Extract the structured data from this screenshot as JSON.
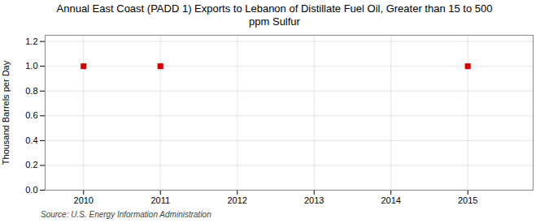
{
  "chart_data": {
    "type": "scatter",
    "title": "Annual East Coast (PADD 1) Exports to Lebanon of Distillate Fuel Oil, Greater than 15 to 500\nppm Sulfur",
    "ylabel": "Thousand Barrels per Day",
    "source": "Source: U.S. Energy Information Administration",
    "x": [
      2010,
      2011,
      2015
    ],
    "values": [
      1.0,
      1.0,
      1.0
    ],
    "color": "#cc0000",
    "marker": "square",
    "xlim": [
      2009.5,
      2015.85
    ],
    "ylim": [
      0.0,
      1.25
    ],
    "xticks": [
      2010,
      2011,
      2012,
      2013,
      2014,
      2015
    ],
    "yticks": [
      {
        "value": 0.0,
        "label": "0.0"
      },
      0.2,
      0.4,
      0.6,
      0.8,
      {
        "value": 1.0,
        "label": "1.0"
      },
      1.2
    ],
    "grid": true
  }
}
